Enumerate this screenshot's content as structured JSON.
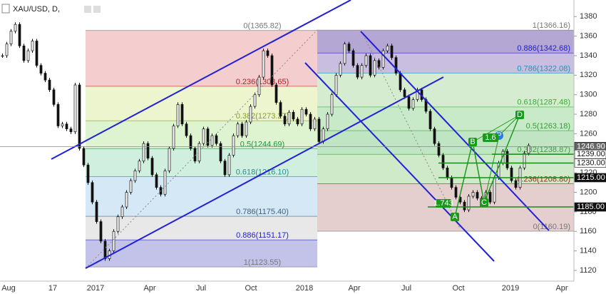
{
  "header": {
    "symbol": "XAU/USD, D,"
  },
  "price_axis": {
    "ylim": [
      1109,
      1397
    ],
    "ticks": [
      1120,
      1140,
      1160,
      1180,
      1200,
      1220,
      1240,
      1260,
      1280,
      1300,
      1320,
      1340,
      1360,
      1380
    ]
  },
  "time_axis": {
    "labels": [
      "Aug",
      "17",
      "2017",
      "Apr",
      "Jul",
      "Oct",
      "2018",
      "Apr",
      "Jul",
      "Oct",
      "2019",
      "Apr"
    ]
  },
  "price_series": [
    1340,
    1352,
    1365,
    1372,
    1350,
    1335,
    1345,
    1355,
    1330,
    1322,
    1315,
    1305,
    1290,
    1268,
    1270,
    1265,
    1262,
    1310,
    1245,
    1228,
    1210,
    1190,
    1170,
    1150,
    1132,
    1140,
    1160,
    1175,
    1185,
    1200,
    1212,
    1222,
    1232,
    1250,
    1235,
    1218,
    1205,
    1198,
    1222,
    1245,
    1268,
    1290,
    1270,
    1258,
    1245,
    1232,
    1250,
    1265,
    1248,
    1258,
    1250,
    1232,
    1218,
    1238,
    1258,
    1270,
    1258,
    1272,
    1288,
    1300,
    1318,
    1345,
    1340,
    1310,
    1292,
    1278,
    1270,
    1282,
    1275,
    1270,
    1285,
    1280,
    1265,
    1275,
    1252,
    1265,
    1280,
    1300,
    1320,
    1332,
    1352,
    1345,
    1330,
    1318,
    1330,
    1340,
    1320,
    1335,
    1328,
    1345,
    1350,
    1338,
    1322,
    1305,
    1298,
    1286,
    1295,
    1305,
    1295,
    1283,
    1265,
    1250,
    1238,
    1225,
    1215,
    1205,
    1195,
    1190,
    1182,
    1196,
    1200,
    1194,
    1190,
    1200,
    1190,
    1215,
    1230,
    1242,
    1225,
    1212,
    1205,
    1225,
    1240,
    1248
  ],
  "fib_left": [
    {
      "label": "0(1365.82)",
      "price": 1365.82
    },
    {
      "label": "0.236(1308.65)",
      "price": 1308.65
    },
    {
      "label": "0.382(1273.27)",
      "price": 1273.27
    },
    {
      "label": "0.5(1244.69)",
      "price": 1244.69
    },
    {
      "label": "0.618(1216.10)",
      "price": 1216.1
    },
    {
      "label": "0.786(1175.40)",
      "price": 1175.4
    },
    {
      "label": "0.886(1151.17)",
      "price": 1151.17
    },
    {
      "label": "1(1123.55)",
      "price": 1123.55
    }
  ],
  "fib_right": [
    {
      "label": "1(1366.16)",
      "price": 1366.16
    },
    {
      "label": "0.886(1342.68)",
      "price": 1342.68
    },
    {
      "label": "0.786(1322.08)",
      "price": 1322.08
    },
    {
      "label": "0.618(1287.48)",
      "price": 1287.48
    },
    {
      "label": "0.5(1263.18)",
      "price": 1263.18
    },
    {
      "label": "0.382(1238.87)",
      "price": 1238.87
    },
    {
      "label": "0.236(1208.80)",
      "price": 1208.8
    },
    {
      "label": "0(1160.19)",
      "price": 1160.19
    }
  ],
  "price_tags": [
    {
      "value": 1246.9,
      "label": "1246.90"
    },
    {
      "value": 1239,
      "label": "1239.00"
    },
    {
      "value": 1230,
      "label": "1230.00"
    },
    {
      "value": 1215,
      "label": "1215.00"
    },
    {
      "value": 1185,
      "label": "1185.00"
    }
  ],
  "pattern_labels": [
    "A",
    "B",
    "C",
    "D",
    "P",
    "1.743",
    "1.6"
  ]
}
